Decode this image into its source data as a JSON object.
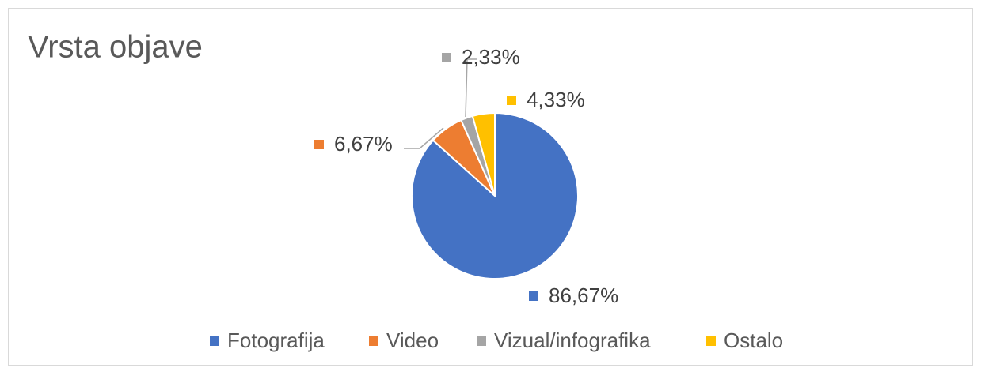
{
  "chart_data": {
    "type": "pie",
    "title": "Vrsta objave",
    "categories": [
      "Fotografija",
      "Video",
      "Vizual/infografika",
      "Ostalo"
    ],
    "values": [
      86.67,
      6.67,
      2.33,
      4.33
    ],
    "value_labels": [
      "86,67%",
      "6,67%",
      "2,33%",
      "4,33%"
    ],
    "colors": [
      "#4472c4",
      "#ed7d31",
      "#a5a5a5",
      "#ffc000"
    ],
    "legend": "bottom"
  }
}
